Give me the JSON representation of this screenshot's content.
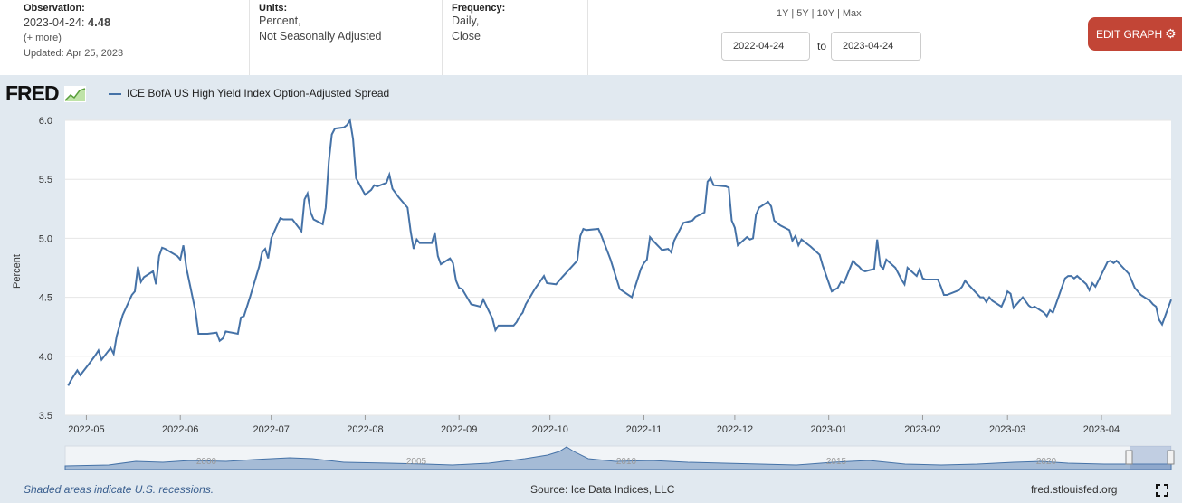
{
  "header": {
    "observation_label": "Observation:",
    "observation_date": "2023-04-24:",
    "observation_value": "4.48",
    "more": "(+ more)",
    "updated": "Updated: Apr 25, 2023",
    "units_label": "Units:",
    "units_line1": "Percent,",
    "units_line2": "Not Seasonally Adjusted",
    "frequency_label": "Frequency:",
    "frequency_line1": "Daily,",
    "frequency_line2": "Close"
  },
  "range": {
    "r1y": "1Y",
    "r5y": "5Y",
    "r10y": "10Y",
    "rmax": "Max",
    "sep": "|"
  },
  "dates": {
    "start": "2022-04-24",
    "to": "to",
    "end": "2023-04-24"
  },
  "edit_button": {
    "label": "EDIT GRAPH"
  },
  "logo": "FRED",
  "footer": {
    "recession_note": "Shaded areas indicate U.S. recessions.",
    "source": "Source: Ice Data Indices, LLC",
    "site": "fred.stlouisfed.org"
  },
  "colors": {
    "line": "#4572a7",
    "plot_bg": "#ffffff",
    "page_bg": "#e1e9f0",
    "button": "#c24536"
  },
  "icons": {
    "edit": "gear-icon",
    "fullscreen": "fullscreen-icon",
    "logo_graph": "chart-icon"
  },
  "chart_data": {
    "type": "line",
    "legend": "ICE BofA US High Yield Index Option-Adjusted Spread",
    "ylabel": "Percent",
    "ylim": [
      3.5,
      6.0
    ],
    "yticks": [
      "3.5",
      "4.0",
      "4.5",
      "5.0",
      "5.5",
      "6.0"
    ],
    "xlim": [
      "2022-04-24",
      "2023-04-24"
    ],
    "xticks": [
      "2022-05",
      "2022-06",
      "2022-07",
      "2022-08",
      "2022-09",
      "2022-10",
      "2022-11",
      "2022-12",
      "2023-01",
      "2023-02",
      "2023-03",
      "2023-04"
    ],
    "grid": true,
    "points": [
      [
        "2022-04-25",
        3.75
      ],
      [
        "2022-04-26",
        3.8
      ],
      [
        "2022-04-27",
        3.84
      ],
      [
        "2022-04-28",
        3.88
      ],
      [
        "2022-04-29",
        3.84
      ],
      [
        "2022-05-02",
        3.94
      ],
      [
        "2022-05-04",
        4.01
      ],
      [
        "2022-05-05",
        4.05
      ],
      [
        "2022-05-06",
        3.97
      ],
      [
        "2022-05-09",
        4.07
      ],
      [
        "2022-05-10",
        4.02
      ],
      [
        "2022-05-11",
        4.17
      ],
      [
        "2022-05-13",
        4.35
      ],
      [
        "2022-05-16",
        4.52
      ],
      [
        "2022-05-17",
        4.55
      ],
      [
        "2022-05-18",
        4.76
      ],
      [
        "2022-05-19",
        4.63
      ],
      [
        "2022-05-20",
        4.67
      ],
      [
        "2022-05-23",
        4.72
      ],
      [
        "2022-05-24",
        4.61
      ],
      [
        "2022-05-25",
        4.85
      ],
      [
        "2022-05-26",
        4.92
      ],
      [
        "2022-05-27",
        4.91
      ],
      [
        "2022-05-31",
        4.85
      ],
      [
        "2022-06-01",
        4.82
      ],
      [
        "2022-06-02",
        4.94
      ],
      [
        "2022-06-03",
        4.75
      ],
      [
        "2022-06-06",
        4.38
      ],
      [
        "2022-06-07",
        4.19
      ],
      [
        "2022-06-09",
        4.19
      ],
      [
        "2022-06-10",
        4.19
      ],
      [
        "2022-06-13",
        4.2
      ],
      [
        "2022-06-14",
        4.13
      ],
      [
        "2022-06-15",
        4.15
      ],
      [
        "2022-06-16",
        4.21
      ],
      [
        "2022-06-20",
        4.19
      ],
      [
        "2022-06-21",
        4.33
      ],
      [
        "2022-06-22",
        4.34
      ],
      [
        "2022-06-24",
        4.5
      ],
      [
        "2022-06-27",
        4.76
      ],
      [
        "2022-06-28",
        4.88
      ],
      [
        "2022-06-29",
        4.91
      ],
      [
        "2022-06-30",
        4.83
      ],
      [
        "2022-07-01",
        5.0
      ],
      [
        "2022-07-04",
        5.17
      ],
      [
        "2022-07-05",
        5.16
      ],
      [
        "2022-07-08",
        5.16
      ],
      [
        "2022-07-11",
        5.06
      ],
      [
        "2022-07-12",
        5.33
      ],
      [
        "2022-07-13",
        5.38
      ],
      [
        "2022-07-14",
        5.22
      ],
      [
        "2022-07-15",
        5.16
      ],
      [
        "2022-07-18",
        5.12
      ],
      [
        "2022-07-19",
        5.26
      ],
      [
        "2022-07-20",
        5.65
      ],
      [
        "2022-07-21",
        5.88
      ],
      [
        "2022-07-22",
        5.93
      ],
      [
        "2022-07-25",
        5.94
      ],
      [
        "2022-07-26",
        5.96
      ],
      [
        "2022-07-27",
        6.0
      ],
      [
        "2022-07-28",
        5.84
      ],
      [
        "2022-07-29",
        5.51
      ],
      [
        "2022-08-01",
        5.37
      ],
      [
        "2022-08-03",
        5.41
      ],
      [
        "2022-08-04",
        5.45
      ],
      [
        "2022-08-05",
        5.44
      ],
      [
        "2022-08-08",
        5.47
      ],
      [
        "2022-08-09",
        5.54
      ],
      [
        "2022-08-10",
        5.42
      ],
      [
        "2022-08-12",
        5.35
      ],
      [
        "2022-08-15",
        5.26
      ],
      [
        "2022-08-16",
        5.06
      ],
      [
        "2022-08-17",
        4.91
      ],
      [
        "2022-08-18",
        4.99
      ],
      [
        "2022-08-19",
        4.96
      ],
      [
        "2022-08-23",
        4.96
      ],
      [
        "2022-08-24",
        5.05
      ],
      [
        "2022-08-25",
        4.85
      ],
      [
        "2022-08-26",
        4.78
      ],
      [
        "2022-08-29",
        4.83
      ],
      [
        "2022-08-30",
        4.79
      ],
      [
        "2022-08-31",
        4.64
      ],
      [
        "2022-09-01",
        4.58
      ],
      [
        "2022-09-02",
        4.57
      ],
      [
        "2022-09-05",
        4.44
      ],
      [
        "2022-09-08",
        4.42
      ],
      [
        "2022-09-09",
        4.48
      ],
      [
        "2022-09-12",
        4.32
      ],
      [
        "2022-09-13",
        4.22
      ],
      [
        "2022-09-14",
        4.26
      ],
      [
        "2022-09-15",
        4.26
      ],
      [
        "2022-09-19",
        4.26
      ],
      [
        "2022-09-20",
        4.29
      ],
      [
        "2022-09-21",
        4.34
      ],
      [
        "2022-09-22",
        4.37
      ],
      [
        "2022-09-23",
        4.44
      ],
      [
        "2022-09-26",
        4.57
      ],
      [
        "2022-09-29",
        4.68
      ],
      [
        "2022-09-30",
        4.62
      ],
      [
        "2022-10-03",
        4.61
      ],
      [
        "2022-10-05",
        4.67
      ],
      [
        "2022-10-10",
        4.81
      ],
      [
        "2022-10-11",
        5.02
      ],
      [
        "2022-10-12",
        5.08
      ],
      [
        "2022-10-13",
        5.07
      ],
      [
        "2022-10-17",
        5.08
      ],
      [
        "2022-10-18",
        5.02
      ],
      [
        "2022-10-21",
        4.82
      ],
      [
        "2022-10-24",
        4.57
      ],
      [
        "2022-10-28",
        4.5
      ],
      [
        "2022-10-31",
        4.74
      ],
      [
        "2022-11-01",
        4.79
      ],
      [
        "2022-11-02",
        4.82
      ],
      [
        "2022-11-03",
        5.01
      ],
      [
        "2022-11-04",
        4.98
      ],
      [
        "2022-11-07",
        4.9
      ],
      [
        "2022-11-09",
        4.91
      ],
      [
        "2022-11-10",
        4.88
      ],
      [
        "2022-11-11",
        4.98
      ],
      [
        "2022-11-14",
        5.13
      ],
      [
        "2022-11-17",
        5.15
      ],
      [
        "2022-11-18",
        5.18
      ],
      [
        "2022-11-21",
        5.22
      ],
      [
        "2022-11-22",
        5.48
      ],
      [
        "2022-11-23",
        5.51
      ],
      [
        "2022-11-24",
        5.45
      ],
      [
        "2022-11-28",
        5.44
      ],
      [
        "2022-11-29",
        5.43
      ],
      [
        "2022-11-30",
        5.15
      ],
      [
        "2022-12-01",
        5.09
      ],
      [
        "2022-12-02",
        4.94
      ],
      [
        "2022-12-05",
        5.01
      ],
      [
        "2022-12-06",
        4.99
      ],
      [
        "2022-12-07",
        5.0
      ],
      [
        "2022-12-08",
        5.2
      ],
      [
        "2022-12-09",
        5.26
      ],
      [
        "2022-12-12",
        5.31
      ],
      [
        "2022-12-13",
        5.27
      ],
      [
        "2022-12-14",
        5.15
      ],
      [
        "2022-12-16",
        5.11
      ],
      [
        "2022-12-19",
        5.07
      ],
      [
        "2022-12-20",
        4.98
      ],
      [
        "2022-12-21",
        5.02
      ],
      [
        "2022-12-22",
        4.94
      ],
      [
        "2022-12-23",
        4.99
      ],
      [
        "2022-12-26",
        4.93
      ],
      [
        "2022-12-29",
        4.86
      ],
      [
        "2022-12-30",
        4.77
      ],
      [
        "2023-01-02",
        4.55
      ],
      [
        "2023-01-04",
        4.58
      ],
      [
        "2023-01-05",
        4.63
      ],
      [
        "2023-01-06",
        4.62
      ],
      [
        "2023-01-09",
        4.81
      ],
      [
        "2023-01-10",
        4.78
      ],
      [
        "2023-01-11",
        4.76
      ],
      [
        "2023-01-12",
        4.73
      ],
      [
        "2023-01-13",
        4.72
      ],
      [
        "2023-01-16",
        4.74
      ],
      [
        "2023-01-17",
        4.99
      ],
      [
        "2023-01-18",
        4.77
      ],
      [
        "2023-01-19",
        4.74
      ],
      [
        "2023-01-20",
        4.82
      ],
      [
        "2023-01-23",
        4.75
      ],
      [
        "2023-01-24",
        4.7
      ],
      [
        "2023-01-25",
        4.65
      ],
      [
        "2023-01-26",
        4.61
      ],
      [
        "2023-01-27",
        4.75
      ],
      [
        "2023-01-30",
        4.68
      ],
      [
        "2023-01-31",
        4.74
      ],
      [
        "2023-02-01",
        4.66
      ],
      [
        "2023-02-02",
        4.65
      ],
      [
        "2023-02-06",
        4.65
      ],
      [
        "2023-02-07",
        4.59
      ],
      [
        "2023-02-08",
        4.52
      ],
      [
        "2023-02-09",
        4.52
      ],
      [
        "2023-02-13",
        4.56
      ],
      [
        "2023-02-14",
        4.59
      ],
      [
        "2023-02-15",
        4.64
      ],
      [
        "2023-02-16",
        4.61
      ],
      [
        "2023-02-20",
        4.5
      ],
      [
        "2023-02-21",
        4.5
      ],
      [
        "2023-02-22",
        4.46
      ],
      [
        "2023-02-23",
        4.5
      ],
      [
        "2023-02-24",
        4.47
      ],
      [
        "2023-02-27",
        4.42
      ],
      [
        "2023-02-28",
        4.48
      ],
      [
        "2023-03-01",
        4.55
      ],
      [
        "2023-03-02",
        4.53
      ],
      [
        "2023-03-03",
        4.41
      ],
      [
        "2023-03-06",
        4.5
      ],
      [
        "2023-03-08",
        4.43
      ],
      [
        "2023-03-09",
        4.41
      ],
      [
        "2023-03-10",
        4.42
      ],
      [
        "2023-03-13",
        4.37
      ],
      [
        "2023-03-14",
        4.34
      ],
      [
        "2023-03-15",
        4.39
      ],
      [
        "2023-03-16",
        4.37
      ],
      [
        "2023-03-20",
        4.66
      ],
      [
        "2023-03-21",
        4.68
      ],
      [
        "2023-03-22",
        4.68
      ],
      [
        "2023-03-23",
        4.66
      ],
      [
        "2023-03-24",
        4.68
      ],
      [
        "2023-03-27",
        4.61
      ],
      [
        "2023-03-28",
        4.56
      ],
      [
        "2023-03-29",
        4.62
      ],
      [
        "2023-03-30",
        4.59
      ],
      [
        "2023-04-03",
        4.8
      ],
      [
        "2023-04-04",
        4.81
      ],
      [
        "2023-04-05",
        4.79
      ],
      [
        "2023-04-06",
        4.81
      ],
      [
        "2023-04-10",
        4.7
      ],
      [
        "2023-04-11",
        4.64
      ],
      [
        "2023-04-12",
        4.58
      ],
      [
        "2023-04-13",
        4.55
      ],
      [
        "2023-04-14",
        4.52
      ],
      [
        "2023-04-17",
        4.47
      ],
      [
        "2023-04-18",
        4.44
      ],
      [
        "2023-04-19",
        4.42
      ],
      [
        "2023-04-20",
        4.31
      ],
      [
        "2023-04-21",
        4.27
      ],
      [
        "2023-04-24",
        4.48
      ]
    ]
  }
}
